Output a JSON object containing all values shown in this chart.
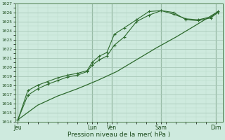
{
  "background_color": "#ceeade",
  "grid_major_color": "#a8c8b8",
  "grid_minor_color": "#b8d8c8",
  "line_color": "#2d6a2d",
  "xlabel": "Pression niveau de la mer( hPa )",
  "ylim": [
    1014,
    1027
  ],
  "yticks": [
    1014,
    1015,
    1016,
    1017,
    1018,
    1019,
    1020,
    1021,
    1022,
    1023,
    1024,
    1025,
    1026,
    1027
  ],
  "day_labels": [
    "Jeu",
    "Lun",
    "Ven",
    "Sam",
    "Dim"
  ],
  "day_positions": [
    0,
    3.0,
    3.8,
    5.8,
    8.0
  ],
  "xmax": 8.3,
  "series1": {
    "x": [
      0.0,
      0.4,
      0.8,
      1.2,
      1.6,
      2.0,
      2.4,
      2.8,
      3.0,
      3.3,
      3.6,
      3.9,
      4.3,
      4.8,
      5.3,
      5.8,
      6.3,
      6.8,
      7.3,
      7.8,
      8.1
    ],
    "y": [
      1014.2,
      1016.9,
      1017.6,
      1018.1,
      1018.5,
      1018.9,
      1019.1,
      1019.5,
      1020.2,
      1020.8,
      1021.2,
      1022.4,
      1023.3,
      1025.0,
      1025.7,
      1026.2,
      1026.0,
      1025.2,
      1025.1,
      1025.4,
      1026.0
    ]
  },
  "series2": {
    "x": [
      0.0,
      0.4,
      0.8,
      1.2,
      1.6,
      2.0,
      2.4,
      2.8,
      3.0,
      3.3,
      3.6,
      3.9,
      4.3,
      4.8,
      5.3,
      5.8,
      6.3,
      6.8,
      7.3,
      7.8,
      8.1
    ],
    "y": [
      1014.2,
      1017.4,
      1018.0,
      1018.4,
      1018.8,
      1019.1,
      1019.3,
      1019.6,
      1020.5,
      1021.2,
      1021.6,
      1023.6,
      1024.3,
      1025.2,
      1026.1,
      1026.2,
      1025.8,
      1025.3,
      1025.2,
      1025.5,
      1026.1
    ]
  },
  "series3": {
    "x": [
      0.0,
      0.8,
      1.6,
      2.4,
      3.2,
      4.0,
      4.8,
      5.6,
      6.4,
      7.2,
      8.1
    ],
    "y": [
      1014.2,
      1015.8,
      1016.8,
      1017.6,
      1018.5,
      1019.5,
      1020.8,
      1022.1,
      1023.3,
      1024.6,
      1026.1
    ]
  }
}
